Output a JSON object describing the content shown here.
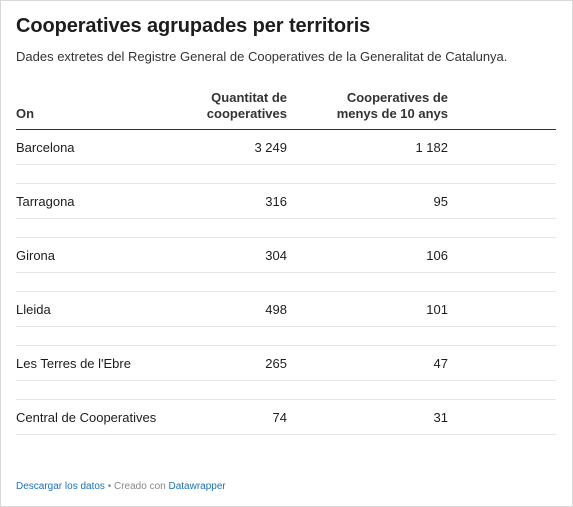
{
  "title": "Cooperatives agrupades per territoris",
  "subtitle": "Dades extretes del Registre General de Cooperatives de la Generalitat de Catalunya.",
  "chart_data": {
    "type": "table",
    "columns": [
      "On",
      "Quantitat de cooperatives",
      "Cooperatives de menys de 10 anys"
    ],
    "rows": [
      {
        "on": "Barcelona",
        "quantitat": "3 249",
        "recents": "1 182"
      },
      {
        "on": "Tarragona",
        "quantitat": "316",
        "recents": "95"
      },
      {
        "on": "Girona",
        "quantitat": "304",
        "recents": "106"
      },
      {
        "on": "Lleida",
        "quantitat": "498",
        "recents": "101"
      },
      {
        "on": "Les Terres de l'Ebre",
        "quantitat": "265",
        "recents": "47"
      },
      {
        "on": "Central de Cooperatives",
        "quantitat": "74",
        "recents": "31"
      }
    ]
  },
  "headers": {
    "name": "On",
    "qty_line1": "Quantitat de",
    "qty_line2": "cooperatives",
    "recent_line1": "Cooperatives de",
    "recent_line2": "menys de 10 anys"
  },
  "footer": {
    "download_label": "Descargar los datos",
    "separator": " • ",
    "created_with": "Creado con ",
    "tool_label": "Datawrapper"
  },
  "colors": {
    "link": "#1c72b9",
    "text": "#1d1d1d",
    "rule": "#333333",
    "row_divider": "#e5e5e5"
  }
}
